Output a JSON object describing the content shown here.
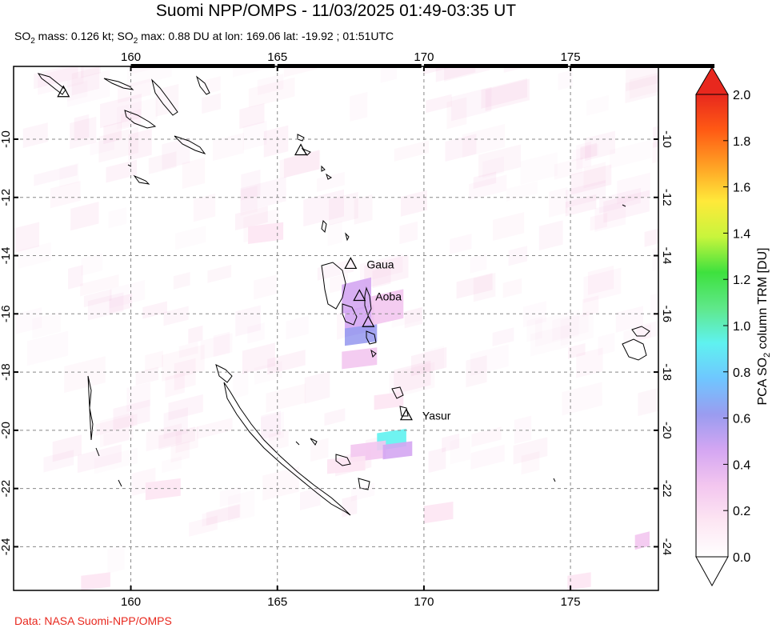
{
  "header": {
    "title": "Suomi NPP/OMPS - 11/03/2025 01:49-03:35 UT",
    "subtitle_pre": "SO",
    "subtitle_mid1": " mass: 0.126 kt; SO",
    "subtitle_post": " max: 0.88 DU at lon: 169.06 lat: -19.92 ; 01:51UTC",
    "subscript": "2"
  },
  "credit": "Data: NASA Suomi-NPP/OMPS",
  "map": {
    "lon_range": [
      156,
      178
    ],
    "lat_range": [
      -25.5,
      -7.5
    ],
    "lon_ticks": [
      "160",
      "165",
      "170",
      "175"
    ],
    "lon_tick_values": [
      160,
      165,
      170,
      175
    ],
    "lat_ticks": [
      "-10",
      "-12",
      "-14",
      "-16",
      "-18",
      "-20",
      "-22",
      "-24"
    ],
    "lat_tick_values": [
      -10,
      -12,
      -14,
      -16,
      -18,
      -20,
      -22,
      -24
    ],
    "grid": true,
    "volcanoes": [
      {
        "name": "",
        "lon": 157.7,
        "lat": -8.4
      },
      {
        "name": "",
        "lon": 165.8,
        "lat": -10.4
      },
      {
        "name": "Gaua",
        "lon": 167.5,
        "lat": -14.3
      },
      {
        "name": "Aoba",
        "lon": 167.8,
        "lat": -15.4
      },
      {
        "name": "",
        "lon": 168.1,
        "lat": -16.3
      },
      {
        "name": "Yasur",
        "lon": 169.4,
        "lat": -19.5
      }
    ],
    "so2_pixels": [
      {
        "lon": 167.2,
        "lat": -15.0,
        "w": 1.0,
        "h": 1.0,
        "du": 0.45
      },
      {
        "lon": 167.3,
        "lat": -15.9,
        "w": 1.0,
        "h": 0.9,
        "du": 0.5
      },
      {
        "lon": 167.3,
        "lat": -16.5,
        "w": 1.1,
        "h": 0.6,
        "du": 0.62
      },
      {
        "lon": 167.2,
        "lat": -17.3,
        "w": 1.2,
        "h": 0.6,
        "du": 0.28
      },
      {
        "lon": 168.2,
        "lat": -15.4,
        "w": 1.1,
        "h": 1.0,
        "du": 0.32
      },
      {
        "lon": 168.4,
        "lat": -20.1,
        "w": 1.0,
        "h": 0.6,
        "du": 0.88
      },
      {
        "lon": 167.5,
        "lat": -20.5,
        "w": 1.2,
        "h": 0.6,
        "du": 0.36
      },
      {
        "lon": 168.6,
        "lat": -20.5,
        "w": 1.0,
        "h": 0.5,
        "du": 0.52
      },
      {
        "lon": 166.7,
        "lat": -21.0,
        "w": 1.3,
        "h": 0.5,
        "du": 0.22
      },
      {
        "lon": 170.0,
        "lat": -22.6,
        "w": 1.0,
        "h": 0.6,
        "du": 0.15
      },
      {
        "lon": 158.3,
        "lat": -25.0,
        "w": 1.0,
        "h": 0.5,
        "du": 0.14
      },
      {
        "lon": 174.9,
        "lat": -25.0,
        "w": 0.8,
        "h": 0.5,
        "du": 0.12
      },
      {
        "lon": 177.2,
        "lat": -23.6,
        "w": 0.5,
        "h": 0.5,
        "du": 0.3
      },
      {
        "lon": 168.3,
        "lat": -18.8,
        "w": 1.0,
        "h": 0.5,
        "du": 0.1
      },
      {
        "lon": 164.0,
        "lat": -13.0,
        "w": 1.2,
        "h": 0.6,
        "du": 0.1
      },
      {
        "lon": 160.5,
        "lat": -21.8,
        "w": 1.2,
        "h": 0.6,
        "du": 0.08
      }
    ]
  },
  "colorbar": {
    "label_pre": "PCA SO",
    "label_sub": "2",
    "label_post": " column TRM [DU]",
    "ticks": [
      "0.0",
      "0.2",
      "0.4",
      "0.6",
      "0.8",
      "1.0",
      "1.2",
      "1.4",
      "1.6",
      "1.8",
      "2.0"
    ],
    "tick_values": [
      0.0,
      0.2,
      0.4,
      0.6,
      0.8,
      1.0,
      1.2,
      1.4,
      1.6,
      1.8,
      2.0
    ],
    "range": [
      0.0,
      2.0
    ],
    "colors": [
      "#ffffff",
      "#fde6f3",
      "#f3c6ef",
      "#d4a6f2",
      "#9a9cf0",
      "#6fc6ff",
      "#5ff2f0",
      "#5fe88a",
      "#3ee13e",
      "#c8f53c",
      "#ffe93a",
      "#ffa024",
      "#ff5a14",
      "#e8281e"
    ]
  }
}
